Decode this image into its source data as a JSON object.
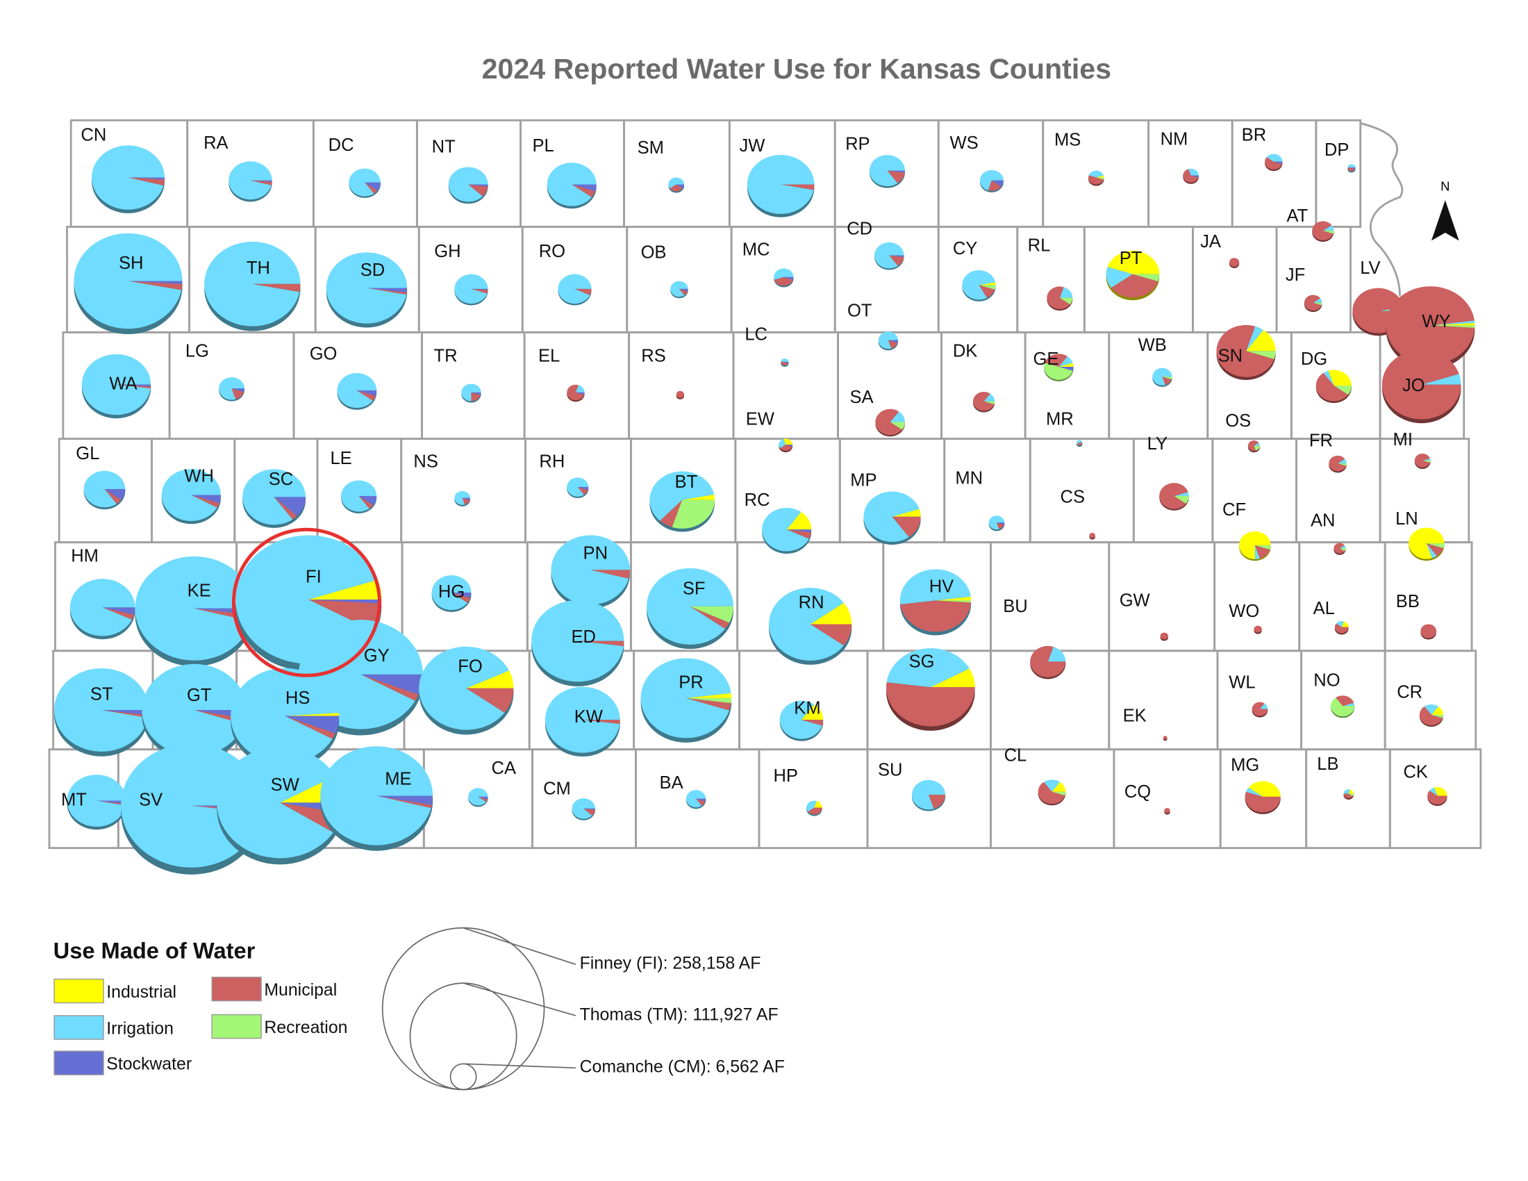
{
  "title": "2024 Reported Water Use for Kansas Counties",
  "north": "N",
  "legend": {
    "title": "Use Made of Water",
    "uses": [
      {
        "name": "Industrial",
        "color": "#ffff00"
      },
      {
        "name": "Irrigation",
        "color": "#70dcff"
      },
      {
        "name": "Municipal",
        "color": "#cd6060"
      },
      {
        "name": "Recreation",
        "color": "#a4f676"
      },
      {
        "name": "Stockwater",
        "color": "#6670d4"
      }
    ]
  },
  "size_legend": [
    {
      "label": "Finney (FI): 258,158 AF",
      "value": 258158
    },
    {
      "label": "Thomas (TM): 111,927 AF",
      "value": 111927
    },
    {
      "label": "Comanche (CM): 6,562 AF",
      "value": 6562
    }
  ],
  "counties": [
    {
      "abbr": "CN",
      "total": 64500,
      "shares": [
        0,
        96,
        3,
        0,
        1
      ]
    },
    {
      "abbr": "RA",
      "total": 22800,
      "shares": [
        0,
        96,
        3,
        0,
        1
      ]
    },
    {
      "abbr": "DC",
      "total": 12100,
      "shares": [
        0,
        85,
        5,
        0,
        10
      ]
    },
    {
      "abbr": "NT",
      "total": 18900,
      "shares": [
        0,
        88,
        10,
        0,
        2
      ]
    },
    {
      "abbr": "PL",
      "total": 29500,
      "shares": [
        0,
        90,
        5,
        0,
        5
      ]
    },
    {
      "abbr": "SM",
      "total": 3000,
      "shares": [
        0,
        60,
        30,
        0,
        10
      ]
    },
    {
      "abbr": "JW",
      "total": 54500,
      "shares": [
        0,
        97,
        3,
        0,
        0
      ]
    },
    {
      "abbr": "RP",
      "total": 15300,
      "shares": [
        0,
        85,
        13,
        0,
        2
      ]
    },
    {
      "abbr": "WS",
      "total": 6800,
      "shares": [
        0,
        70,
        20,
        0,
        10
      ]
    },
    {
      "abbr": "MS",
      "total": 3000,
      "shares": [
        5,
        40,
        50,
        5,
        0
      ]
    },
    {
      "abbr": "NM",
      "total": 3000,
      "shares": [
        0,
        30,
        65,
        0,
        5
      ]
    },
    {
      "abbr": "BR",
      "total": 3800,
      "shares": [
        0,
        40,
        55,
        0,
        5
      ]
    },
    {
      "abbr": "DP",
      "total": 750,
      "shares": [
        0,
        50,
        40,
        0,
        10
      ]
    },
    {
      "abbr": "SH",
      "total": 142600,
      "shares": [
        0,
        97,
        2,
        0,
        1
      ]
    },
    {
      "abbr": "TH",
      "total": 111927,
      "shares": [
        0,
        97,
        3,
        0,
        0
      ]
    },
    {
      "abbr": "SD",
      "total": 79200,
      "shares": [
        0,
        97,
        1,
        0,
        2
      ]
    },
    {
      "abbr": "GH",
      "total": 13600,
      "shares": [
        0,
        95,
        4,
        0,
        1
      ]
    },
    {
      "abbr": "RO",
      "total": 13600,
      "shares": [
        0,
        93,
        7,
        0,
        0
      ]
    },
    {
      "abbr": "OB",
      "total": 3800,
      "shares": [
        0,
        85,
        10,
        0,
        5
      ]
    },
    {
      "abbr": "MC",
      "total": 4700,
      "shares": [
        0,
        55,
        40,
        0,
        5
      ]
    },
    {
      "abbr": "CD",
      "total": 10600,
      "shares": [
        0,
        85,
        13,
        0,
        2
      ]
    },
    {
      "abbr": "CY",
      "total": 13600,
      "shares": [
        3,
        80,
        12,
        5,
        0
      ]
    },
    {
      "abbr": "RL",
      "total": 8000,
      "shares": [
        0,
        20,
        70,
        10,
        0
      ]
    },
    {
      "abbr": "PT",
      "total": 34400,
      "shares": [
        45,
        15,
        35,
        5,
        0
      ]
    },
    {
      "abbr": "JA",
      "total": 1200,
      "shares": [
        0,
        0,
        100,
        0,
        0
      ]
    },
    {
      "abbr": "AT",
      "total": 5700,
      "shares": [
        0,
        10,
        85,
        5,
        0
      ]
    },
    {
      "abbr": "JF",
      "total": 3800,
      "shares": [
        0,
        10,
        85,
        5,
        0
      ]
    },
    {
      "abbr": "LV",
      "total": 31900,
      "shares": [
        0,
        2,
        97,
        1,
        0
      ]
    },
    {
      "abbr": "WY",
      "total": 95500,
      "shares": [
        1,
        1,
        97,
        1,
        0
      ]
    },
    {
      "abbr": "WA",
      "total": 57700,
      "shares": [
        0,
        98,
        1,
        0,
        1
      ]
    },
    {
      "abbr": "LG",
      "total": 8000,
      "shares": [
        0,
        80,
        15,
        0,
        5
      ]
    },
    {
      "abbr": "GO",
      "total": 18900,
      "shares": [
        0,
        90,
        5,
        0,
        5
      ]
    },
    {
      "abbr": "TR",
      "total": 4700,
      "shares": [
        0,
        75,
        20,
        0,
        5
      ]
    },
    {
      "abbr": "EL",
      "total": 3800,
      "shares": [
        0,
        20,
        75,
        0,
        5
      ]
    },
    {
      "abbr": "RS",
      "total": 750,
      "shares": [
        0,
        0,
        100,
        0,
        0
      ]
    },
    {
      "abbr": "LC",
      "total": 750,
      "shares": [
        0,
        50,
        40,
        0,
        10
      ]
    },
    {
      "abbr": "OT",
      "total": 4700,
      "shares": [
        0,
        80,
        15,
        0,
        5
      ]
    },
    {
      "abbr": "SA",
      "total": 10600,
      "shares": [
        0,
        15,
        75,
        10,
        0
      ]
    },
    {
      "abbr": "DK",
      "total": 5700,
      "shares": [
        0,
        15,
        80,
        5,
        0
      ]
    },
    {
      "abbr": "GE",
      "total": 10600,
      "shares": [
        5,
        10,
        30,
        50,
        5
      ]
    },
    {
      "abbr": "WB",
      "total": 4700,
      "shares": [
        0,
        80,
        15,
        5,
        0
      ]
    },
    {
      "abbr": "SN",
      "total": 42400,
      "shares": [
        15,
        5,
        75,
        5,
        0
      ]
    },
    {
      "abbr": "DG",
      "total": 15300,
      "shares": [
        30,
        5,
        55,
        10,
        0
      ]
    },
    {
      "abbr": "JO",
      "total": 75400,
      "shares": [
        0,
        5,
        95,
        0,
        0
      ]
    },
    {
      "abbr": "MR",
      "total": 420,
      "shares": [
        0,
        60,
        40,
        0,
        0
      ]
    },
    {
      "abbr": "EW",
      "total": 2300,
      "shares": [
        30,
        30,
        35,
        0,
        5
      ]
    },
    {
      "abbr": "GL",
      "total": 20800,
      "shares": [
        0,
        85,
        5,
        0,
        10
      ]
    },
    {
      "abbr": "WH",
      "total": 42400,
      "shares": [
        0,
        92,
        3,
        0,
        5
      ]
    },
    {
      "abbr": "SC",
      "total": 48300,
      "shares": [
        0,
        85,
        3,
        0,
        12
      ]
    },
    {
      "abbr": "LE",
      "total": 15300,
      "shares": [
        0,
        85,
        5,
        0,
        10
      ]
    },
    {
      "abbr": "NS",
      "total": 3000,
      "shares": [
        0,
        80,
        15,
        0,
        5
      ]
    },
    {
      "abbr": "RH",
      "total": 5700,
      "shares": [
        0,
        85,
        10,
        0,
        5
      ]
    },
    {
      "abbr": "BT",
      "total": 51300,
      "shares": [
        3,
        60,
        7,
        30,
        0
      ]
    },
    {
      "abbr": "RC",
      "total": 29500,
      "shares": [
        15,
        78,
        5,
        0,
        2
      ]
    },
    {
      "abbr": "MP",
      "total": 39600,
      "shares": [
        5,
        80,
        15,
        0,
        0
      ]
    },
    {
      "abbr": "MN",
      "total": 3000,
      "shares": [
        0,
        80,
        15,
        0,
        5
      ]
    },
    {
      "abbr": "CS",
      "total": 420,
      "shares": [
        0,
        0,
        100,
        0,
        0
      ]
    },
    {
      "abbr": "LY",
      "total": 10600,
      "shares": [
        0,
        5,
        85,
        10,
        0
      ]
    },
    {
      "abbr": "OS",
      "total": 1700,
      "shares": [
        0,
        10,
        70,
        20,
        0
      ]
    },
    {
      "abbr": "FR",
      "total": 3800,
      "shares": [
        0,
        10,
        85,
        5,
        0
      ]
    },
    {
      "abbr": "MI",
      "total": 3000,
      "shares": [
        0,
        5,
        90,
        5,
        0
      ]
    },
    {
      "abbr": "CF",
      "total": 12100,
      "shares": [
        75,
        5,
        15,
        5,
        0
      ]
    },
    {
      "abbr": "AN",
      "total": 1700,
      "shares": [
        0,
        10,
        80,
        10,
        0
      ]
    },
    {
      "abbr": "LN",
      "total": 15300,
      "shares": [
        80,
        5,
        10,
        5,
        0
      ]
    },
    {
      "abbr": "HM",
      "total": 51300,
      "shares": [
        0,
        93,
        3,
        0,
        4
      ]
    },
    {
      "abbr": "KE",
      "total": 169700,
      "shares": [
        0,
        96,
        2,
        0,
        2
      ]
    },
    {
      "abbr": "FI",
      "total": 258158,
      "shares": [
        5,
        87,
        7,
        0,
        1
      ]
    },
    {
      "abbr": "HG",
      "total": 18900,
      "shares": [
        0,
        90,
        5,
        0,
        5
      ]
    },
    {
      "abbr": "PN",
      "total": 75400,
      "shares": [
        0,
        96,
        4,
        0,
        0
      ]
    },
    {
      "abbr": "SF",
      "total": 91300,
      "shares": [
        0,
        90,
        3,
        7,
        0
      ]
    },
    {
      "abbr": "ED",
      "total": 104100,
      "shares": [
        0,
        98,
        2,
        0,
        0
      ]
    },
    {
      "abbr": "RN",
      "total": 83100,
      "shares": [
        10,
        80,
        10,
        0,
        0
      ]
    },
    {
      "abbr": "HV",
      "total": 61100,
      "shares": [
        2,
        50,
        47,
        1,
        0
      ]
    },
    {
      "abbr": "BU",
      "total": 15300,
      "shares": [
        0,
        20,
        80,
        0,
        0
      ]
    },
    {
      "abbr": "GW",
      "total": 750,
      "shares": [
        0,
        0,
        100,
        0,
        0
      ]
    },
    {
      "abbr": "WO",
      "total": 750,
      "shares": [
        0,
        0,
        100,
        0,
        0
      ]
    },
    {
      "abbr": "AL",
      "total": 2300,
      "shares": [
        20,
        20,
        60,
        0,
        0
      ]
    },
    {
      "abbr": "BB",
      "total": 3000,
      "shares": [
        0,
        0,
        100,
        0,
        0
      ]
    },
    {
      "abbr": "GY",
      "total": 187100,
      "shares": [
        0,
        92,
        2,
        0,
        6
      ]
    },
    {
      "abbr": "SG",
      "total": 95500,
      "shares": [
        8,
        40,
        52,
        0,
        0
      ]
    },
    {
      "abbr": "ST",
      "total": 108600,
      "shares": [
        0,
        97,
        1,
        0,
        2
      ]
    },
    {
      "abbr": "GT",
      "total": 132400,
      "shares": [
        0,
        95,
        2,
        0,
        3
      ]
    },
    {
      "abbr": "HS",
      "total": 142600,
      "shares": [
        1,
        91,
        2,
        0,
        6
      ]
    },
    {
      "abbr": "FO",
      "total": 108600,
      "shares": [
        7,
        83,
        10,
        0,
        0
      ]
    },
    {
      "abbr": "KW",
      "total": 68100,
      "shares": [
        0,
        98,
        2,
        0,
        0
      ]
    },
    {
      "abbr": "PR",
      "total": 99700,
      "shares": [
        2,
        93,
        3,
        2,
        0
      ]
    },
    {
      "abbr": "KM",
      "total": 22800,
      "shares": [
        15,
        80,
        5,
        0,
        0
      ]
    },
    {
      "abbr": "EK",
      "total": 190,
      "shares": [
        0,
        0,
        100,
        0,
        0
      ]
    },
    {
      "abbr": "WL",
      "total": 3000,
      "shares": [
        0,
        15,
        85,
        0,
        0
      ]
    },
    {
      "abbr": "NO",
      "total": 6800,
      "shares": [
        0,
        5,
        30,
        65,
        0
      ]
    },
    {
      "abbr": "CR",
      "total": 6800,
      "shares": [
        15,
        20,
        60,
        5,
        0
      ]
    },
    {
      "abbr": "MT",
      "total": 42400,
      "shares": [
        0,
        97,
        1,
        0,
        2
      ]
    },
    {
      "abbr": "SV",
      "total": 240000,
      "shares": [
        0,
        98,
        1,
        0,
        1
      ]
    },
    {
      "abbr": "SW",
      "total": 193100,
      "shares": [
        8,
        83,
        6,
        0,
        3
      ]
    },
    {
      "abbr": "ME",
      "total": 153200,
      "shares": [
        0,
        96,
        1,
        0,
        3
      ]
    },
    {
      "abbr": "CA",
      "total": 4700,
      "shares": [
        0,
        90,
        5,
        0,
        5
      ]
    },
    {
      "abbr": "CM",
      "total": 6562,
      "shares": [
        0,
        88,
        10,
        0,
        2
      ]
    },
    {
      "abbr": "BA",
      "total": 4700,
      "shares": [
        0,
        85,
        10,
        0,
        5
      ]
    },
    {
      "abbr": "HP",
      "total": 3000,
      "shares": [
        20,
        40,
        40,
        0,
        0
      ]
    },
    {
      "abbr": "SU",
      "total": 13600,
      "shares": [
        0,
        80,
        20,
        0,
        0
      ]
    },
    {
      "abbr": "CL",
      "total": 9200,
      "shares": [
        15,
        20,
        60,
        5,
        0
      ]
    },
    {
      "abbr": "CQ",
      "total": 420,
      "shares": [
        0,
        0,
        100,
        0,
        0
      ]
    },
    {
      "abbr": "MG",
      "total": 15300,
      "shares": [
        40,
        5,
        55,
        0,
        0
      ]
    },
    {
      "abbr": "LB",
      "total": 1200,
      "shares": [
        20,
        30,
        40,
        10,
        0
      ]
    },
    {
      "abbr": "CK",
      "total": 4700,
      "shares": [
        30,
        10,
        60,
        0,
        0
      ]
    }
  ]
}
